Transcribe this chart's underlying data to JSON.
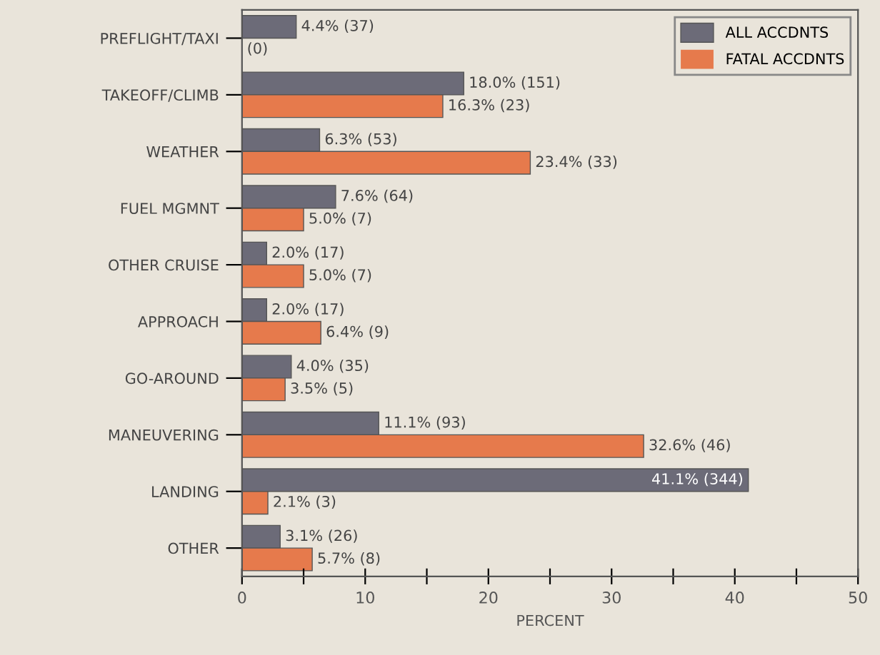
{
  "chart_data": {
    "type": "bar",
    "orientation": "horizontal",
    "xlabel": "PERCENT",
    "categories": [
      "PREFLIGHT/TAXI",
      "TAKEOFF/CLIMB",
      "WEATHER",
      "FUEL MGMNT",
      "OTHER CRUISE",
      "APPROACH",
      "GO-AROUND",
      "MANEUVERING",
      "LANDING",
      "OTHER"
    ],
    "series": [
      {
        "name": "ALL ACCDNTS",
        "color": "#6c6b78",
        "values": [
          4.4,
          18.0,
          6.3,
          7.6,
          2.0,
          2.0,
          4.0,
          11.1,
          41.1,
          3.1
        ],
        "value_labels": [
          "4.4% (37)",
          "18.0% (151)",
          "6.3% (53)",
          "7.6% (64)",
          "2.0% (17)",
          "2.0% (17)",
          "4.0% (35)",
          "11.1% (93)",
          "41.1% (344)",
          "3.1% (26)"
        ]
      },
      {
        "name": "FATAL ACCDNTS",
        "color": "#e67a4c",
        "values": [
          0,
          16.3,
          23.4,
          5.0,
          5.0,
          6.4,
          3.5,
          32.6,
          2.1,
          5.7
        ],
        "value_labels": [
          "(0)",
          "16.3% (23)",
          "23.4% (33)",
          "5.0% (7)",
          "5.0% (7)",
          "6.4% (9)",
          "3.5% (5)",
          "32.6% (46)",
          "2.1% (3)",
          "5.7% (8)"
        ]
      }
    ],
    "xlim": [
      0,
      50
    ],
    "xticks": [
      0,
      {
        "value": 5,
        "label": null
      },
      10,
      {
        "value": 15,
        "label": null
      },
      20,
      {
        "value": 25,
        "label": null
      },
      30,
      {
        "value": 35,
        "label": null
      },
      40,
      {
        "value": 45,
        "label": null
      },
      50
    ],
    "legend": "top right",
    "grid": false
  }
}
